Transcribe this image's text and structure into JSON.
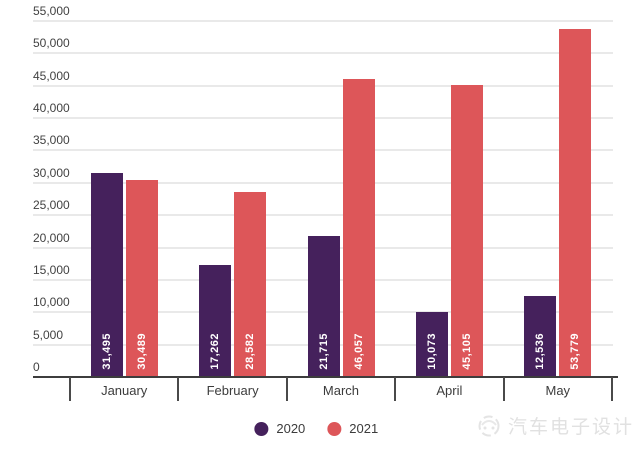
{
  "chart_data": {
    "type": "bar",
    "title": "",
    "categories": [
      "January",
      "February",
      "March",
      "April",
      "May"
    ],
    "series": [
      {
        "name": "2020",
        "color": "#45215c",
        "values": [
          31495,
          17262,
          21715,
          10073,
          12536
        ],
        "labels": [
          "31,495",
          "17,262",
          "21,715",
          "10,073",
          "12,536"
        ]
      },
      {
        "name": "2021",
        "color": "#dd5659",
        "values": [
          30489,
          28582,
          46057,
          45105,
          53779
        ],
        "labels": [
          "30,489",
          "28,582",
          "46,057",
          "45,105",
          "53,779"
        ]
      }
    ],
    "y_axis": {
      "min": 0,
      "max": 55000,
      "step": 5000,
      "tick_labels": [
        "0",
        "5,000",
        "10,000",
        "15,000",
        "20,000",
        "25,000",
        "30,000",
        "35,000",
        "40,000",
        "45,000",
        "50,000",
        "55,000"
      ]
    },
    "grid": true,
    "legend_position": "bottom",
    "value_labels_inside_bars": true
  },
  "watermark": {
    "text": "汽车电子设计",
    "icon": "car-logo-icon"
  },
  "colors": {
    "background": "#ffffff",
    "gridline": "#e9e9e9",
    "axis_line": "#3d3d3d",
    "axis_text": "#424242",
    "bar_value_text": "#ffffff",
    "watermark_text": "#e1e1e1"
  }
}
